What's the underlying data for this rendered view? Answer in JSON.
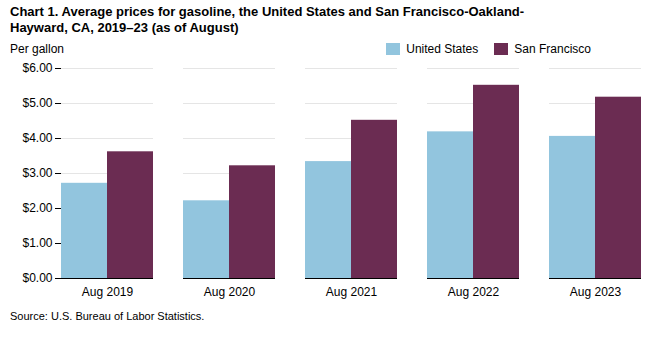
{
  "chart_data": {
    "type": "bar",
    "title": "Chart 1. Average prices for gasoline, the United States and San Francisco-Oakland-\nHayward, CA, 2019–23 (as of August)",
    "ylabel": "Per gallon",
    "source": "Source: U.S. Bureau of Labor Statistics.",
    "categories": [
      "Aug 2019",
      "Aug 2020",
      "Aug 2021",
      "Aug 2022",
      "Aug 2023"
    ],
    "series": [
      {
        "name": "United States",
        "color": "#92C5DE",
        "values": [
          2.72,
          2.22,
          3.34,
          4.19,
          4.06
        ]
      },
      {
        "name": "San Francisco",
        "color": "#6B2C52",
        "values": [
          3.62,
          3.22,
          4.52,
          5.52,
          5.18
        ]
      }
    ],
    "ylim": [
      0,
      6.0
    ],
    "yticks": [
      {
        "value": 0.0,
        "label": "$0.00"
      },
      {
        "value": 1.0,
        "label": "$1.00"
      },
      {
        "value": 2.0,
        "label": "$2.00"
      },
      {
        "value": 3.0,
        "label": "$3.00"
      },
      {
        "value": 4.0,
        "label": "$4.00"
      },
      {
        "value": 5.0,
        "label": "$5.00"
      },
      {
        "value": 6.0,
        "label": "$6.00"
      }
    ],
    "grid": true,
    "legend": "top"
  }
}
